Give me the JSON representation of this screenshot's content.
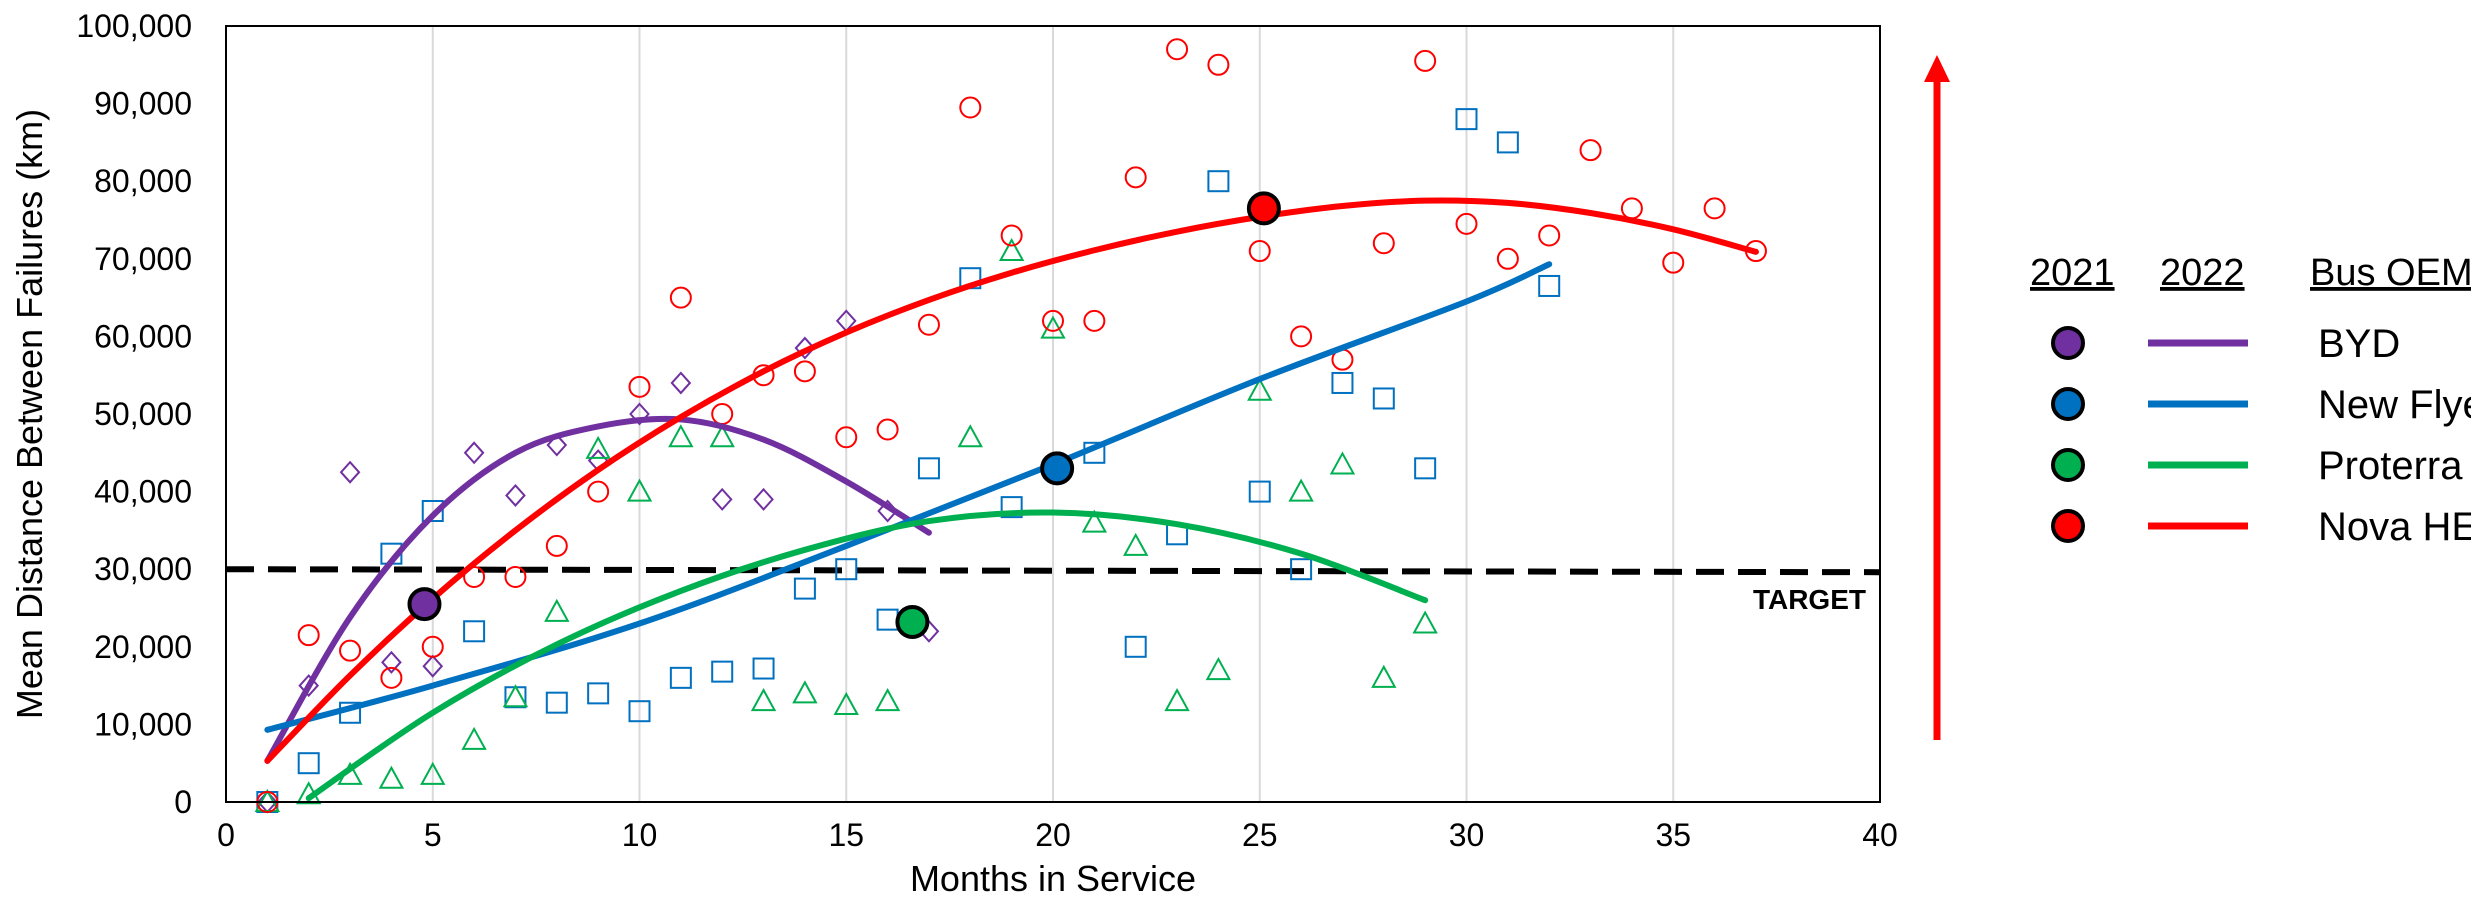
{
  "chart_data": {
    "type": "scatter",
    "xlabel": "Months in Service",
    "ylabel": "Mean Distance Between Failures (km)",
    "xlim": [
      0,
      40
    ],
    "ylim": [
      0,
      100000
    ],
    "x_ticks": [
      "0",
      "5",
      "10",
      "15",
      "20",
      "25",
      "30",
      "35",
      "40"
    ],
    "y_ticks": [
      "0",
      "10,000",
      "20,000",
      "30,000",
      "40,000",
      "50,000",
      "60,000",
      "70,000",
      "80,000",
      "90,000",
      "100,000"
    ],
    "grid": "vertical",
    "target": {
      "label": "TARGET",
      "value": 30000
    },
    "legend": {
      "position": "right",
      "headers": [
        "2021",
        "2022",
        "Bus OEM"
      ],
      "entries": [
        "BYD",
        "New Flyer",
        "Proterra",
        "Nova HEV"
      ]
    },
    "series": [
      {
        "name": "BYD",
        "color": "#7030A0",
        "marker": "diamond",
        "points": [
          [
            1,
            0
          ],
          [
            2,
            15000
          ],
          [
            3,
            42500
          ],
          [
            4,
            18000
          ],
          [
            5,
            17500
          ],
          [
            6,
            45000
          ],
          [
            7,
            39500
          ],
          [
            8,
            46000
          ],
          [
            9,
            44000
          ],
          [
            10,
            50000
          ],
          [
            11,
            54000
          ],
          [
            12,
            39000
          ],
          [
            13,
            39000
          ],
          [
            14,
            58500
          ],
          [
            15,
            62000
          ],
          [
            16,
            37500
          ],
          [
            17,
            22000
          ]
        ],
        "trend": [
          [
            1,
            5300
          ],
          [
            3,
            23800
          ],
          [
            5,
            36900
          ],
          [
            7,
            45000
          ],
          [
            9,
            48400
          ],
          [
            11,
            49300
          ],
          [
            13,
            46700
          ],
          [
            15,
            41300
          ],
          [
            17,
            34700
          ]
        ],
        "marker_2021": [
          4.8,
          25500
        ]
      },
      {
        "name": "New Flyer",
        "color": "#0070C0",
        "marker": "square",
        "points": [
          [
            1,
            0
          ],
          [
            2,
            5000
          ],
          [
            3,
            11500
          ],
          [
            4,
            32000
          ],
          [
            5,
            37500
          ],
          [
            6,
            22000
          ],
          [
            7,
            13500
          ],
          [
            8,
            12800
          ],
          [
            9,
            14000
          ],
          [
            10,
            11700
          ],
          [
            11,
            16000
          ],
          [
            12,
            16800
          ],
          [
            13,
            17200
          ],
          [
            14,
            27500
          ],
          [
            15,
            30000
          ],
          [
            16,
            23500
          ],
          [
            17,
            43000
          ],
          [
            18,
            67500
          ],
          [
            19,
            38000
          ],
          [
            21,
            45000
          ],
          [
            22,
            20000
          ],
          [
            23,
            34500
          ],
          [
            24,
            80000
          ],
          [
            25,
            40000
          ],
          [
            26,
            30000
          ],
          [
            27,
            54000
          ],
          [
            28,
            52000
          ],
          [
            29,
            43000
          ],
          [
            30,
            88000
          ],
          [
            31,
            85000
          ],
          [
            32,
            66500
          ]
        ],
        "trend": [
          [
            1,
            9300
          ],
          [
            5,
            15000
          ],
          [
            10,
            23000
          ],
          [
            15,
            33000
          ],
          [
            20,
            43500
          ],
          [
            25,
            54500
          ],
          [
            30,
            64500
          ],
          [
            32,
            69300
          ]
        ],
        "marker_2021": [
          20.1,
          43000
        ]
      },
      {
        "name": "Proterra",
        "color": "#00B050",
        "marker": "triangle",
        "points": [
          [
            1,
            0
          ],
          [
            2,
            1000
          ],
          [
            3,
            3500
          ],
          [
            4,
            3000
          ],
          [
            5,
            3500
          ],
          [
            6,
            8000
          ],
          [
            7,
            13500
          ],
          [
            8,
            24500
          ],
          [
            9,
            45500
          ],
          [
            10,
            40000
          ],
          [
            11,
            47000
          ],
          [
            12,
            47000
          ],
          [
            13,
            13000
          ],
          [
            14,
            14000
          ],
          [
            15,
            12500
          ],
          [
            16,
            13000
          ],
          [
            18,
            47000
          ],
          [
            19,
            71000
          ],
          [
            20,
            61000
          ],
          [
            21,
            36000
          ],
          [
            22,
            33000
          ],
          [
            23,
            13000
          ],
          [
            24,
            17000
          ],
          [
            25,
            53000
          ],
          [
            26,
            40000
          ],
          [
            27,
            43500
          ],
          [
            28,
            16000
          ],
          [
            29,
            23000
          ]
        ],
        "trend": [
          [
            2,
            500
          ],
          [
            5,
            11500
          ],
          [
            8,
            20300
          ],
          [
            11,
            27200
          ],
          [
            14,
            32500
          ],
          [
            17,
            36200
          ],
          [
            20,
            37300
          ],
          [
            23,
            35800
          ],
          [
            26,
            32000
          ],
          [
            29,
            26000
          ]
        ],
        "marker_2021": [
          16.6,
          23200
        ]
      },
      {
        "name": "Nova HEV",
        "color": "#FF0000",
        "marker": "circle",
        "points": [
          [
            1,
            0
          ],
          [
            2,
            21500
          ],
          [
            3,
            19500
          ],
          [
            4,
            16000
          ],
          [
            5,
            20000
          ],
          [
            6,
            29000
          ],
          [
            7,
            29000
          ],
          [
            8,
            33000
          ],
          [
            9,
            40000
          ],
          [
            10,
            53500
          ],
          [
            11,
            65000
          ],
          [
            12,
            50000
          ],
          [
            13,
            55000
          ],
          [
            14,
            55500
          ],
          [
            15,
            47000
          ],
          [
            16,
            48000
          ],
          [
            17,
            61500
          ],
          [
            18,
            89500
          ],
          [
            19,
            73000
          ],
          [
            20,
            62000
          ],
          [
            21,
            62000
          ],
          [
            22,
            80500
          ],
          [
            23,
            97000
          ],
          [
            24,
            95000
          ],
          [
            25,
            71000
          ],
          [
            26,
            60000
          ],
          [
            27,
            57000
          ],
          [
            28,
            72000
          ],
          [
            29,
            95500
          ],
          [
            30,
            74500
          ],
          [
            31,
            70000
          ],
          [
            32,
            73000
          ],
          [
            33,
            84000
          ],
          [
            34,
            76500
          ],
          [
            35,
            69500
          ],
          [
            36,
            76500
          ],
          [
            37,
            71000
          ]
        ],
        "trend": [
          [
            1,
            5300
          ],
          [
            3,
            16300
          ],
          [
            5,
            26200
          ],
          [
            7,
            35000
          ],
          [
            9,
            42800
          ],
          [
            11,
            49600
          ],
          [
            13,
            55500
          ],
          [
            15,
            60500
          ],
          [
            17,
            64700
          ],
          [
            19,
            68200
          ],
          [
            21,
            71100
          ],
          [
            23,
            73500
          ],
          [
            25,
            75400
          ],
          [
            27,
            76800
          ],
          [
            29,
            77500
          ],
          [
            31,
            77200
          ],
          [
            33,
            75900
          ],
          [
            35,
            73800
          ],
          [
            37,
            70900
          ]
        ],
        "marker_2021": [
          25.1,
          76500
        ]
      }
    ]
  }
}
